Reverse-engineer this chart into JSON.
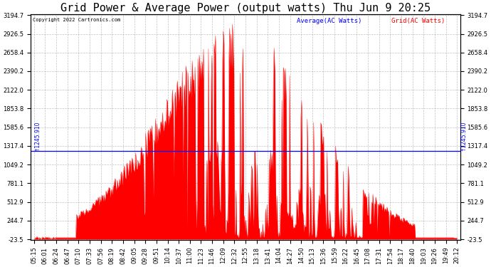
{
  "title": "Grid Power & Average Power (output watts) Thu Jun 9 20:25",
  "copyright": "Copyright 2022 Cartronics.com",
  "legend_avg": "Average(AC Watts)",
  "legend_grid": "Grid(AC Watts)",
  "avg_color": "#0000ff",
  "grid_color": "#ff0000",
  "avg_line_value": 1245.91,
  "y_ticks": [
    -23.5,
    244.7,
    512.9,
    781.1,
    1049.2,
    1317.4,
    1585.6,
    1853.8,
    2122.0,
    2390.2,
    2658.4,
    2926.5,
    3194.7
  ],
  "y_min": -23.5,
  "y_max": 3194.7,
  "x_labels": [
    "05:15",
    "06:01",
    "06:24",
    "06:47",
    "07:10",
    "07:33",
    "07:56",
    "08:19",
    "08:42",
    "09:05",
    "09:28",
    "09:51",
    "10:14",
    "10:37",
    "11:00",
    "11:23",
    "11:46",
    "12:09",
    "12:32",
    "12:55",
    "13:18",
    "13:41",
    "14:04",
    "14:27",
    "14:50",
    "15:13",
    "15:36",
    "15:59",
    "16:22",
    "16:45",
    "17:08",
    "17:31",
    "17:54",
    "18:17",
    "18:40",
    "19:03",
    "19:26",
    "19:49",
    "20:12"
  ],
  "background_color": "#ffffff",
  "title_fontsize": 11,
  "tick_fontsize": 6,
  "figwidth": 6.9,
  "figheight": 3.75
}
